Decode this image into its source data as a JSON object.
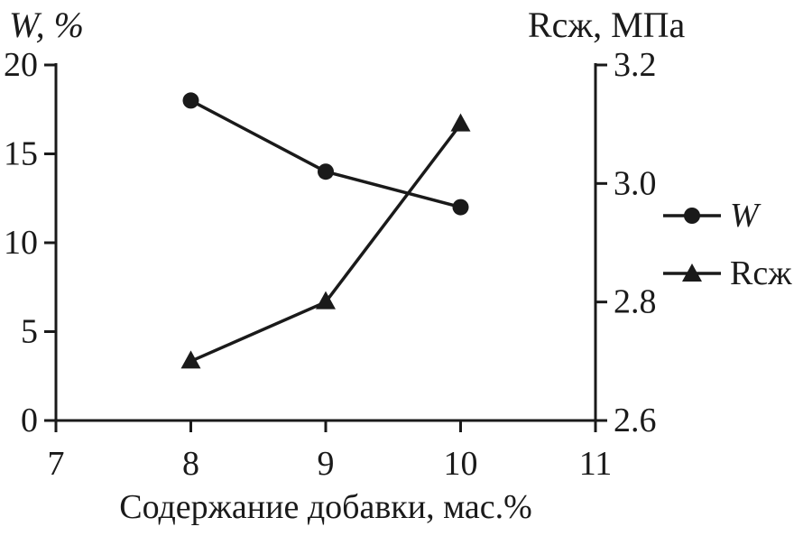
{
  "chart_data": {
    "type": "line",
    "x": [
      8,
      9,
      10
    ],
    "series": [
      {
        "id": "w",
        "name": "W",
        "axis": "left",
        "marker": "circle",
        "values": [
          18,
          14,
          12
        ]
      },
      {
        "id": "rszh",
        "name": "Rсж",
        "axis": "right",
        "marker": "triangle",
        "values": [
          2.7,
          2.8,
          3.1
        ]
      }
    ],
    "x_axis": {
      "label": "Содержание добавки, мас.%",
      "range": [
        7,
        11
      ],
      "ticks": [
        7,
        8,
        9,
        10,
        11
      ],
      "tick_labels": [
        "7",
        "8",
        "9",
        "10",
        "11"
      ]
    },
    "left_axis": {
      "label": "W, %",
      "range": [
        0,
        20
      ],
      "ticks": [
        0,
        5,
        10,
        15,
        20
      ],
      "tick_labels": [
        "0",
        "5",
        "10",
        "15",
        "20"
      ]
    },
    "right_axis": {
      "label": "Rсж, МПа",
      "range": [
        2.6,
        3.2
      ],
      "ticks": [
        2.6,
        2.8,
        3.0,
        3.2
      ],
      "tick_labels": [
        "2.6",
        "2.8",
        "3.0",
        "3.2"
      ]
    },
    "grid": false,
    "legend_position": "right",
    "line_color": "#1a1a1a"
  },
  "titles": {
    "left_axis_title": "W, %",
    "right_axis_title": "Rсж, МПа",
    "x_axis_title": "Содержание добавки, мас.%"
  },
  "legend": {
    "items": [
      {
        "label": "W",
        "marker": "circle"
      },
      {
        "label": "Rсж",
        "marker": "triangle"
      }
    ]
  }
}
